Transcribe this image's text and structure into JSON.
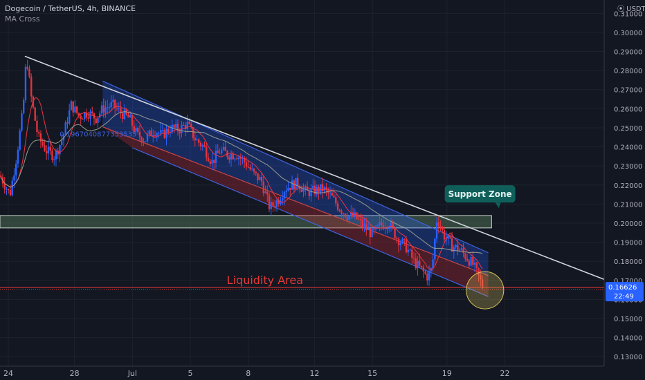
{
  "header": {
    "title": "Dogecoin / TetherUS, 4h, BINANCE",
    "indicator": "MA Cross"
  },
  "colors": {
    "background": "#131722",
    "up": "#2962ff",
    "down": "#e5323c",
    "fast_ma": "#f23645",
    "slow_ma": "#9aa08f",
    "trendline": "#d1d4dc",
    "channel_upper": "#2e4fb8",
    "channel_lower": "#8a1f2a",
    "support_zone": "#3f5a46",
    "liquidity": "#e53935",
    "price_tag": "#2962ff"
  },
  "annotations": {
    "support_zone_label": "Support Zone",
    "liquidity_label": "Liquidity Area",
    "fib_text": "0.1967040877353535"
  },
  "price_axis": {
    "currency": "USDT",
    "current_price": "0.16626",
    "countdown": "22:49"
  },
  "chart_data": {
    "type": "candlestick",
    "title": "Dogecoin / TetherUS, 4h, BINANCE",
    "indicators": [
      "MA Cross"
    ],
    "xlabel": "",
    "ylabel": "USDT",
    "ylim": [
      0.125,
      0.317
    ],
    "y_ticks": [
      "0.13000",
      "0.14000",
      "0.15000",
      "0.16000",
      "0.17000",
      "0.18000",
      "0.19000",
      "0.20000",
      "0.21000",
      "0.22000",
      "0.23000",
      "0.24000",
      "0.25000",
      "0.26000",
      "0.27000",
      "0.28000",
      "0.29000",
      "0.30000",
      "0.31000"
    ],
    "x_ticks": [
      "24",
      "28",
      "Jul",
      "5",
      "8",
      "12",
      "15",
      "19",
      "22"
    ],
    "x_tick_pos": [
      0.5,
      4.5,
      8.0,
      11.5,
      15.0,
      19.0,
      22.5,
      27.0,
      30.5
    ],
    "xlim": [
      0,
      36.5
    ],
    "price_path": [
      [
        0,
        0.225
      ],
      [
        0.6,
        0.215
      ],
      [
        1.0,
        0.235
      ],
      [
        1.4,
        0.26
      ],
      [
        1.6,
        0.288
      ],
      [
        1.9,
        0.265
      ],
      [
        2.3,
        0.245
      ],
      [
        2.8,
        0.238
      ],
      [
        3.3,
        0.235
      ],
      [
        3.8,
        0.245
      ],
      [
        4.3,
        0.262
      ],
      [
        4.8,
        0.256
      ],
      [
        5.3,
        0.258
      ],
      [
        5.8,
        0.255
      ],
      [
        6.2,
        0.26
      ],
      [
        6.8,
        0.262
      ],
      [
        7.3,
        0.258
      ],
      [
        7.8,
        0.255
      ],
      [
        8.3,
        0.246
      ],
      [
        8.8,
        0.244
      ],
      [
        9.3,
        0.249
      ],
      [
        9.8,
        0.246
      ],
      [
        10.3,
        0.25
      ],
      [
        10.8,
        0.249
      ],
      [
        11.3,
        0.252
      ],
      [
        11.8,
        0.244
      ],
      [
        12.3,
        0.24
      ],
      [
        12.8,
        0.232
      ],
      [
        13.3,
        0.238
      ],
      [
        13.8,
        0.236
      ],
      [
        14.3,
        0.236
      ],
      [
        14.8,
        0.232
      ],
      [
        15.3,
        0.226
      ],
      [
        15.8,
        0.222
      ],
      [
        16.3,
        0.208
      ],
      [
        16.8,
        0.212
      ],
      [
        17.2,
        0.218
      ],
      [
        17.6,
        0.22
      ],
      [
        18.0,
        0.221
      ],
      [
        18.5,
        0.216
      ],
      [
        19.0,
        0.217
      ],
      [
        19.5,
        0.218
      ],
      [
        20.0,
        0.214
      ],
      [
        20.5,
        0.208
      ],
      [
        21.0,
        0.204
      ],
      [
        21.5,
        0.203
      ],
      [
        22.0,
        0.198
      ],
      [
        22.5,
        0.194
      ],
      [
        23.0,
        0.199
      ],
      [
        23.5,
        0.2
      ],
      [
        24.0,
        0.192
      ],
      [
        24.5,
        0.188
      ],
      [
        25.0,
        0.18
      ],
      [
        25.4,
        0.176
      ],
      [
        25.8,
        0.172
      ],
      [
        26.1,
        0.176
      ],
      [
        26.4,
        0.203
      ],
      [
        26.8,
        0.194
      ],
      [
        27.3,
        0.188
      ],
      [
        27.8,
        0.186
      ],
      [
        28.2,
        0.182
      ],
      [
        28.6,
        0.178
      ],
      [
        28.9,
        0.172
      ],
      [
        29.2,
        0.166
      ]
    ],
    "trendline": [
      [
        1.5,
        0.2875
      ],
      [
        36.5,
        0.1705
      ]
    ],
    "channel": {
      "upper": [
        [
          6.2,
          0.2745
        ],
        [
          29.5,
          0.1845
        ]
      ],
      "middle": [
        [
          6.2,
          0.2505
        ],
        [
          29.5,
          0.1725
        ]
      ],
      "lower": [
        [
          8.0,
          0.2395
        ],
        [
          29.5,
          0.1615
        ]
      ]
    },
    "support_zone": [
      0.1975,
      0.204
    ],
    "liquidity_level": 0.16626,
    "last_price": 0.16626
  }
}
